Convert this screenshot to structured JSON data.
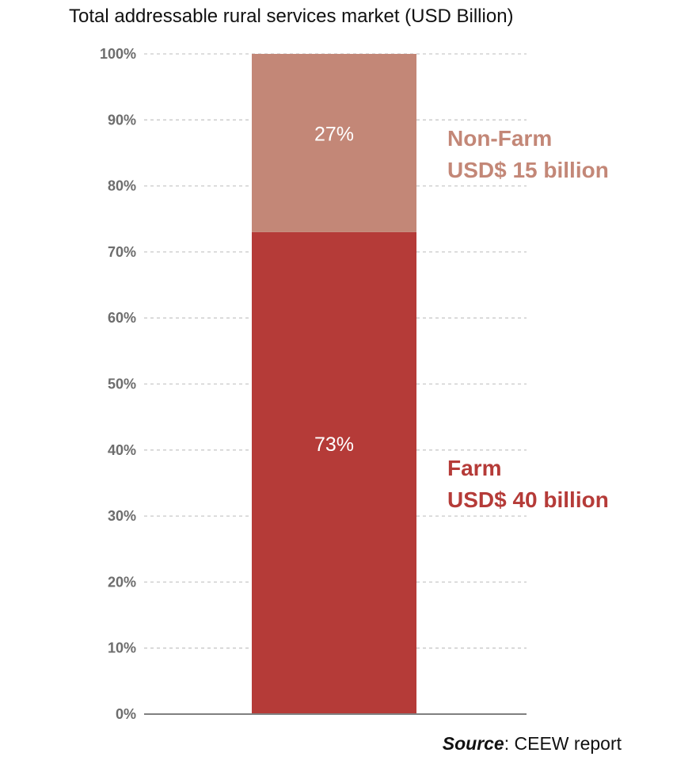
{
  "chart_data": {
    "type": "bar",
    "stacked": true,
    "title": "Total addressable rural services market (USD Billion)",
    "ylim": [
      0,
      100
    ],
    "y_ticks": [
      "0%",
      "10%",
      "20%",
      "30%",
      "40%",
      "50%",
      "60%",
      "70%",
      "80%",
      "90%",
      "100%"
    ],
    "y_tick_values": [
      0,
      10,
      20,
      30,
      40,
      50,
      60,
      70,
      80,
      90,
      100
    ],
    "grid": true,
    "series": [
      {
        "name": "Farm",
        "value": 73,
        "label": "73%",
        "amount_label": "USD$ 40 billion",
        "color": "#b53b38"
      },
      {
        "name": "Non-Farm",
        "value": 27,
        "label": "27%",
        "amount_label": "USD$ 15 billion",
        "color": "#c38777"
      }
    ]
  },
  "source": {
    "prefix": "Source",
    "text": ": CEEW report"
  }
}
